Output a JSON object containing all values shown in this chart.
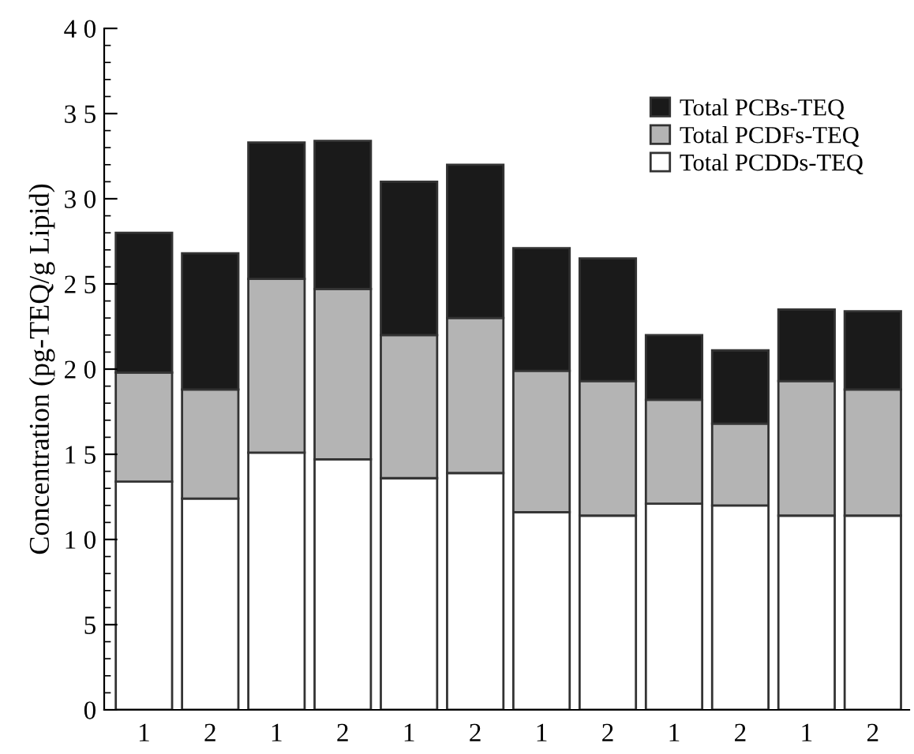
{
  "chart_data": {
    "type": "bar",
    "stacked": true,
    "ylabel": "Concentration (pg-TEQ/g Lipid)",
    "categories": [
      "1",
      "2",
      "1",
      "2",
      "1",
      "2",
      "1",
      "2",
      "1",
      "2",
      "1",
      "2"
    ],
    "series": [
      {
        "name": "Total PCDDs-TEQ",
        "color": "#ffffff",
        "values": [
          13.4,
          12.4,
          15.1,
          14.7,
          13.6,
          13.9,
          11.6,
          11.4,
          12.1,
          12.0,
          11.4,
          11.4
        ]
      },
      {
        "name": "Total PCDFs-TEQ",
        "color": "#b4b4b4",
        "values": [
          6.4,
          6.4,
          10.2,
          10.0,
          8.4,
          9.1,
          8.3,
          7.9,
          6.1,
          4.8,
          7.9,
          7.4
        ]
      },
      {
        "name": "Total PCBs-TEQ",
        "color": "#1a1a1a",
        "values": [
          8.2,
          8.0,
          8.0,
          8.7,
          9.0,
          9.0,
          7.2,
          7.2,
          3.8,
          4.3,
          4.2,
          4.6
        ]
      }
    ],
    "ylim": [
      0,
      40
    ],
    "yticks": [
      0,
      5,
      {
        "value": 10,
        "label": "1 0"
      },
      {
        "value": 15,
        "label": "1 5"
      },
      {
        "value": 20,
        "label": "2 0"
      },
      {
        "value": 25,
        "label": "2 5"
      },
      {
        "value": 30,
        "label": "3 0"
      },
      {
        "value": 35,
        "label": "3 5"
      },
      {
        "value": 40,
        "label": "4 0"
      }
    ],
    "grid": false,
    "legend": "top right"
  }
}
